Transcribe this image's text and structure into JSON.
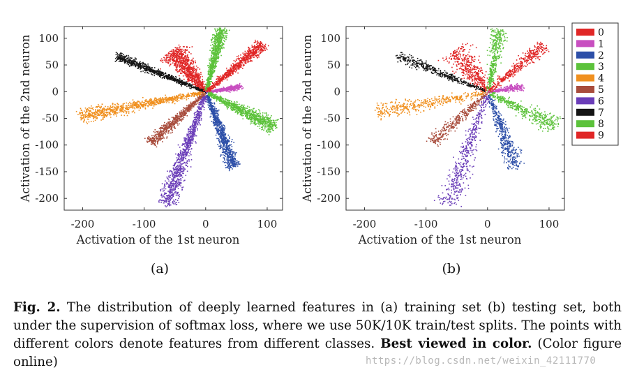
{
  "figure": {
    "panel_labels": [
      "(a)",
      "(b)"
    ],
    "watermark": "https://blog.csdn.net/weixin_42111770"
  },
  "caption": {
    "label": "Fig. 2.",
    "text": " The distribution of deeply learned features in (a) training set (b) testing set, both under the supervision of softmax loss, where we use 50K/10K train/test splits. The points with different colors denote features from different classes. ",
    "emphasis": "Best viewed in color.",
    "tail": " (Color figure online)"
  },
  "chart_data": [
    {
      "type": "scatter",
      "xlabel": "Activation of the 1st neuron",
      "ylabel": "Activation of the 2nd neuron",
      "xlim": [
        -230,
        125
      ],
      "ylim": [
        -222,
        122
      ],
      "xticks": [
        -200,
        -100,
        0,
        100
      ],
      "yticks": [
        100,
        50,
        0,
        -50,
        -100,
        -150,
        -200
      ],
      "grid": false,
      "density": "dense",
      "series": [
        {
          "name": "0",
          "color": "#e02626",
          "tip": [
            -55,
            78
          ],
          "width": 22,
          "points": 900
        },
        {
          "name": "1",
          "color": "#c84fc0",
          "tip": [
            55,
            10
          ],
          "width": 5,
          "points": 500
        },
        {
          "name": "2",
          "color": "#2d4fa8",
          "tip": [
            45,
            -140
          ],
          "width": 12,
          "points": 900
        },
        {
          "name": "3",
          "color": "#5cc23b",
          "tip": [
            110,
            -65
          ],
          "width": 13,
          "points": 900
        },
        {
          "name": "4",
          "color": "#f0901f",
          "tip": [
            -205,
            -45
          ],
          "width": 13,
          "points": 900
        },
        {
          "name": "5",
          "color": "#a84c3c",
          "tip": [
            -90,
            -95
          ],
          "width": 10,
          "points": 700
        },
        {
          "name": "6",
          "color": "#6a3db8",
          "tip": [
            -65,
            -210
          ],
          "width": 15,
          "points": 1000
        },
        {
          "name": "7",
          "color": "#151515",
          "tip": [
            -145,
            67
          ],
          "width": 8,
          "points": 800
        },
        {
          "name": "8",
          "color": "#5cc23b",
          "tip": [
            25,
            118
          ],
          "width": 10,
          "points": 800
        },
        {
          "name": "9",
          "color": "#e02626",
          "tip": [
            92,
            90
          ],
          "width": 11,
          "points": 800
        }
      ]
    },
    {
      "type": "scatter",
      "xlabel": "Activation of the 1st neuron",
      "ylabel": "Activation of the 2nd neuron",
      "xlim": [
        -230,
        125
      ],
      "ylim": [
        -222,
        122
      ],
      "xticks": [
        -200,
        -100,
        0,
        100
      ],
      "yticks": [
        100,
        50,
        0,
        -50,
        -100,
        -150,
        -200
      ],
      "grid": false,
      "density": "sparse",
      "legend": {
        "placement": "right",
        "entries": [
          "0",
          "1",
          "2",
          "3",
          "4",
          "5",
          "6",
          "7",
          "8",
          "9"
        ]
      },
      "series": [
        {
          "name": "0",
          "color": "#e02626",
          "tip": [
            -55,
            78
          ],
          "width": 22,
          "points": 450
        },
        {
          "name": "1",
          "color": "#c84fc0",
          "tip": [
            55,
            10
          ],
          "width": 5,
          "points": 260
        },
        {
          "name": "2",
          "color": "#2d4fa8",
          "tip": [
            45,
            -140
          ],
          "width": 12,
          "points": 450
        },
        {
          "name": "3",
          "color": "#5cc23b",
          "tip": [
            110,
            -65
          ],
          "width": 13,
          "points": 450
        },
        {
          "name": "4",
          "color": "#f0901f",
          "tip": [
            -180,
            -38
          ],
          "width": 13,
          "points": 420
        },
        {
          "name": "5",
          "color": "#a84c3c",
          "tip": [
            -90,
            -95
          ],
          "width": 10,
          "points": 350
        },
        {
          "name": "6",
          "color": "#6a3db8",
          "tip": [
            -65,
            -210
          ],
          "width": 15,
          "points": 480
        },
        {
          "name": "7",
          "color": "#151515",
          "tip": [
            -145,
            67
          ],
          "width": 8,
          "points": 400
        },
        {
          "name": "8",
          "color": "#5cc23b",
          "tip": [
            20,
            118
          ],
          "width": 10,
          "points": 400
        },
        {
          "name": "9",
          "color": "#e02626",
          "tip": [
            90,
            88
          ],
          "width": 11,
          "points": 400
        }
      ]
    }
  ]
}
